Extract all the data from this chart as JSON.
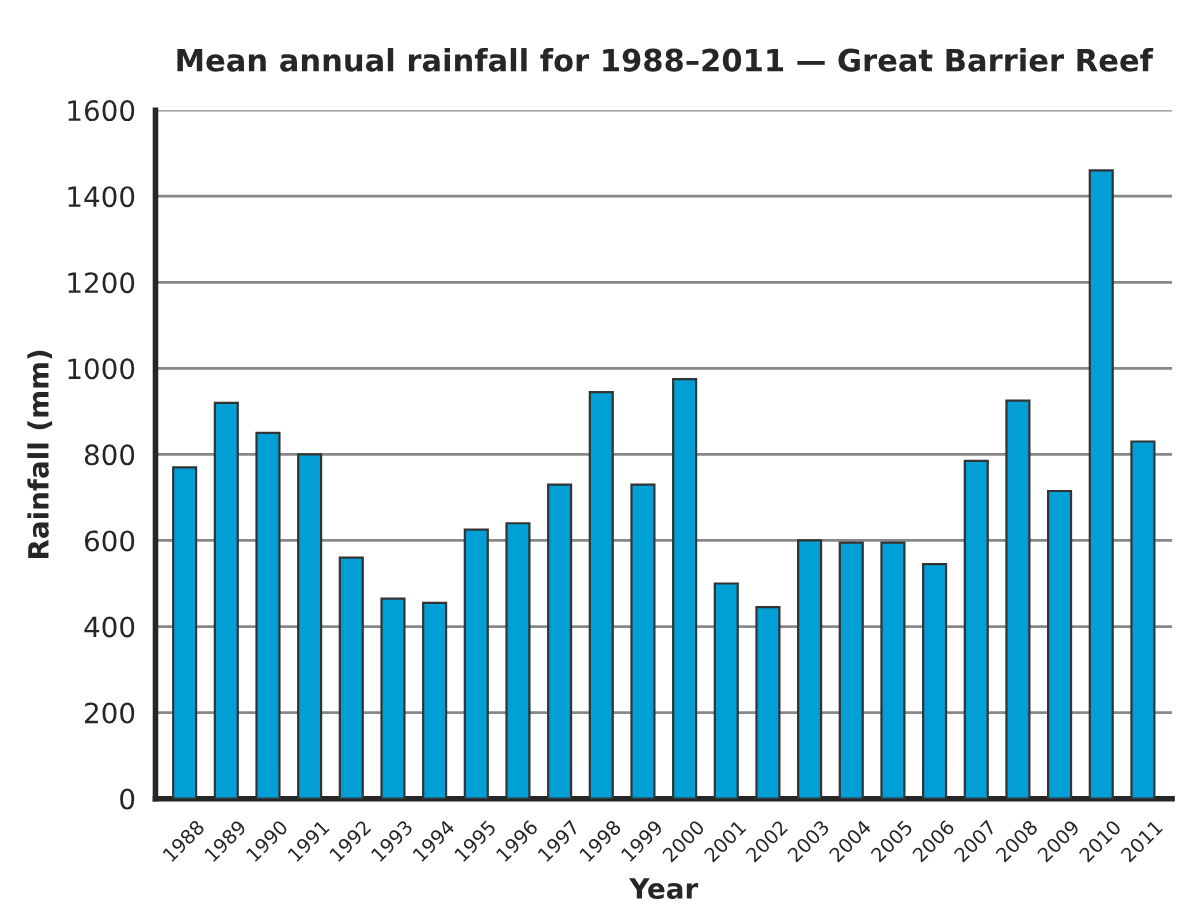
{
  "chart_data": {
    "type": "bar",
    "title": "Mean annual rainfall for 1988–2011 — Great Barrier Reef",
    "xlabel": "Year",
    "ylabel": "Rainfall (mm)",
    "categories": [
      "1988",
      "1989",
      "1990",
      "1991",
      "1992",
      "1993",
      "1994",
      "1995",
      "1996",
      "1997",
      "1998",
      "1999",
      "2000",
      "2001",
      "2002",
      "2003",
      "2004",
      "2005",
      "2006",
      "2007",
      "2008",
      "2009",
      "2010",
      "2011"
    ],
    "values": [
      770,
      920,
      850,
      800,
      560,
      465,
      455,
      625,
      640,
      730,
      945,
      730,
      975,
      500,
      445,
      600,
      595,
      595,
      545,
      785,
      925,
      715,
      1460,
      830
    ],
    "color": "#00a0d6",
    "ylim": [
      0,
      1600
    ],
    "yticks": [
      0,
      200,
      400,
      600,
      800,
      1000,
      1200,
      1400,
      1600
    ],
    "grid": "y"
  }
}
